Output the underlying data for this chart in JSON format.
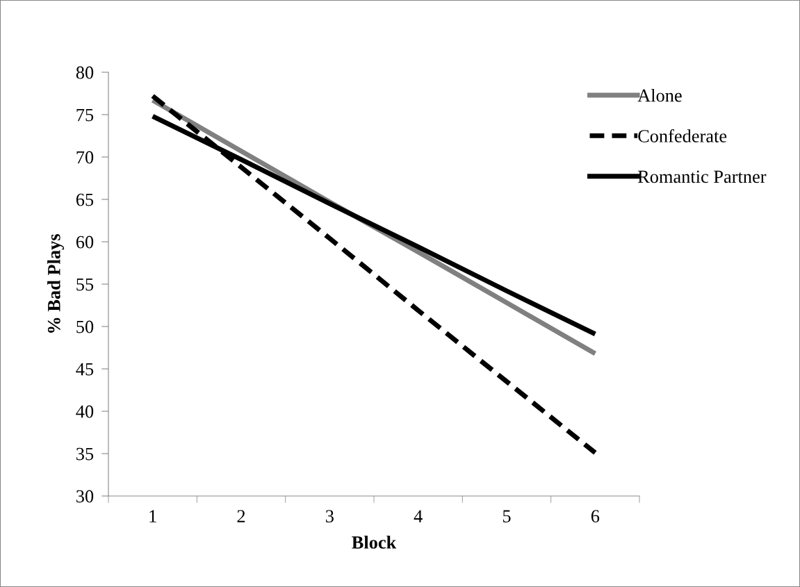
{
  "chart_data": {
    "type": "line",
    "xlabel": "Block",
    "ylabel": "% Bad Plays",
    "categories": [
      "1",
      "2",
      "3",
      "4",
      "5",
      "6"
    ],
    "ylim": [
      30,
      80
    ],
    "yticks": [
      30,
      35,
      40,
      45,
      50,
      55,
      60,
      65,
      70,
      75,
      80
    ],
    "grid": false,
    "legend": "top right",
    "marker": "none",
    "series": [
      {
        "name": "Alone",
        "color": "#808080",
        "line_style": "solid",
        "values": [
          76.7,
          70.7,
          64.7,
          58.8,
          52.8,
          46.8
        ]
      },
      {
        "name": "Confederate",
        "color": "#000000",
        "line_style": "dashed",
        "values": [
          77.2,
          68.8,
          60.4,
          51.9,
          43.5,
          35.1
        ]
      },
      {
        "name": "Romantic Partner",
        "color": "#000000",
        "line_style": "solid",
        "values": [
          74.8,
          69.7,
          64.5,
          59.4,
          54.2,
          49.1
        ]
      }
    ]
  }
}
